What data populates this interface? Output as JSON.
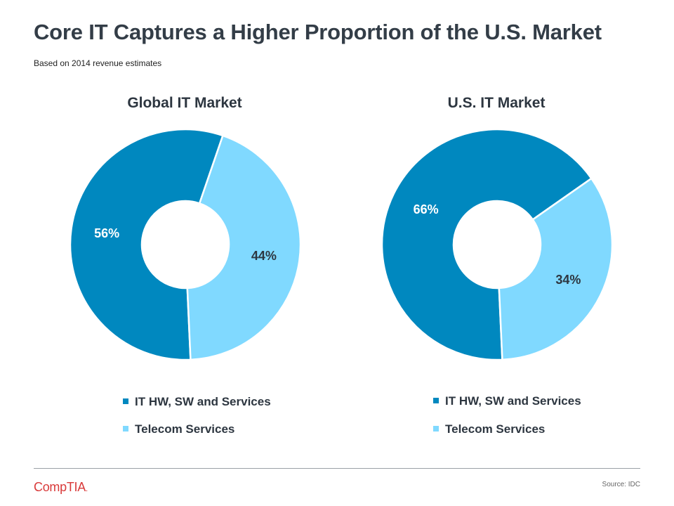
{
  "title": "Core IT Captures a Higher Proportion of the U.S. Market",
  "subtitle": "Based on 2014  revenue estimates",
  "colors": {
    "it": "#0088bf",
    "telecom": "#80d9ff",
    "label_on_dark": "#ffffff",
    "label_on_light": "#2d3640"
  },
  "chart_data": [
    {
      "type": "pie",
      "title": "Global IT Market",
      "categories": [
        "IT HW, SW and Services",
        "Telecom Services"
      ],
      "values": [
        56,
        44
      ],
      "labels": [
        "56%",
        "44%"
      ],
      "legend": "bottom"
    },
    {
      "type": "pie",
      "title": "U.S. IT Market",
      "categories": [
        "IT HW, SW and Services",
        "Telecom Services"
      ],
      "values": [
        66,
        34
      ],
      "labels": [
        "66%",
        "34%"
      ],
      "legend": "bottom"
    }
  ],
  "footer": {
    "logo_text": "CompTIA",
    "source": "Source: IDC"
  }
}
